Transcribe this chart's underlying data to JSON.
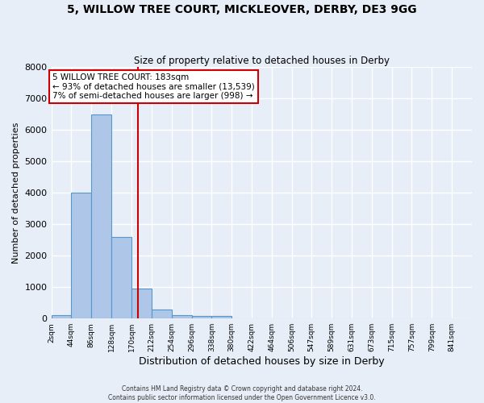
{
  "title_line1": "5, WILLOW TREE COURT, MICKLEOVER, DERBY, DE3 9GG",
  "title_line2": "Size of property relative to detached houses in Derby",
  "xlabel": "Distribution of detached houses by size in Derby",
  "ylabel": "Number of detached properties",
  "bin_edges": [
    2,
    44,
    86,
    128,
    170,
    212,
    254,
    296,
    338,
    380,
    422,
    464,
    506,
    547,
    589,
    631,
    673,
    715,
    757,
    799,
    841
  ],
  "bar_heights": [
    100,
    4000,
    6500,
    2600,
    950,
    300,
    120,
    80,
    80,
    0,
    0,
    0,
    0,
    0,
    0,
    0,
    0,
    0,
    0,
    0
  ],
  "bar_color": "#aec6e8",
  "bar_edge_color": "#5599cc",
  "background_color": "#e8eef8",
  "grid_color": "#ffffff",
  "property_size": 183,
  "vline_color": "#cc0000",
  "annotation_text_line1": "5 WILLOW TREE COURT: 183sqm",
  "annotation_text_line2": "← 93% of detached houses are smaller (13,539)",
  "annotation_text_line3": "7% of semi-detached houses are larger (998) →",
  "annotation_box_color": "#cc0000",
  "annotation_box_fill": "#ffffff",
  "ylim": [
    0,
    8000
  ],
  "yticks": [
    0,
    1000,
    2000,
    3000,
    4000,
    5000,
    6000,
    7000,
    8000
  ],
  "footer_line1": "Contains HM Land Registry data © Crown copyright and database right 2024.",
  "footer_line2": "Contains public sector information licensed under the Open Government Licence v3.0.",
  "tick_labels": [
    "2sqm",
    "44sqm",
    "86sqm",
    "128sqm",
    "170sqm",
    "212sqm",
    "254sqm",
    "296sqm",
    "338sqm",
    "380sqm",
    "422sqm",
    "464sqm",
    "506sqm",
    "547sqm",
    "589sqm",
    "631sqm",
    "673sqm",
    "715sqm",
    "757sqm",
    "799sqm",
    "841sqm"
  ]
}
